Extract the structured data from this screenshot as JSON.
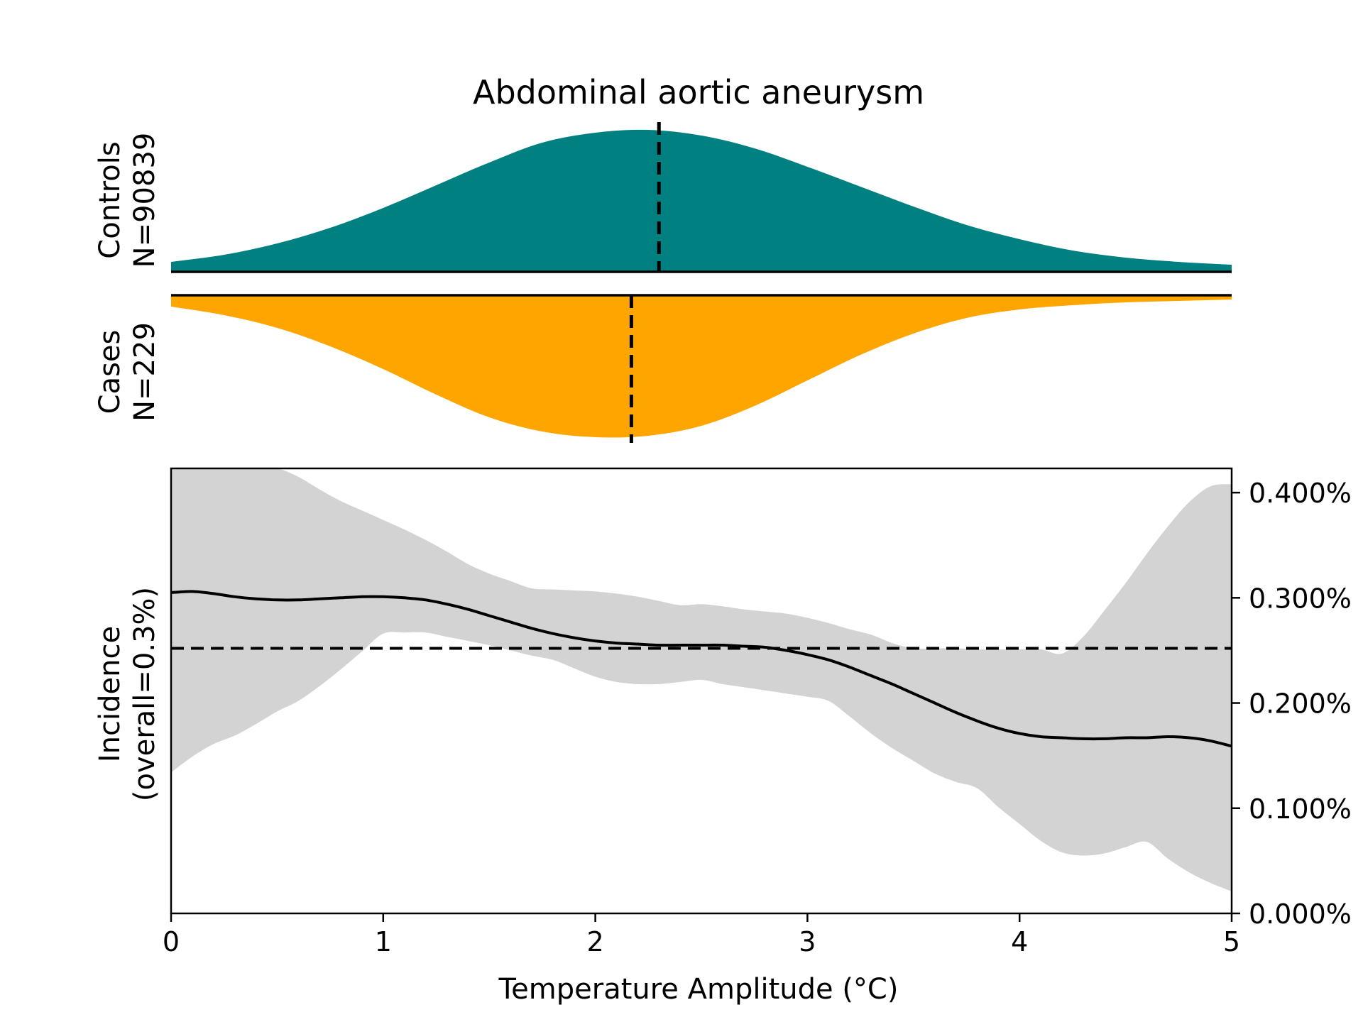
{
  "chart_data": {
    "type": "area",
    "title": "Abdominal aortic aneurysm",
    "xlabel": "Temperature Amplitude (°C)",
    "xlim": [
      0,
      5
    ],
    "x_ticks": [
      "0",
      "1",
      "2",
      "3",
      "4",
      "5"
    ],
    "x_tick_values": [
      0,
      1,
      2,
      3,
      4,
      5
    ],
    "colors": {
      "controls": "#008080",
      "cases": "#FFA500",
      "band": "#D3D3D3",
      "line": "#000000"
    },
    "density_panels": [
      {
        "key": "controls",
        "label_line1": "Controls",
        "label_line2": "N=90839",
        "direction": "up",
        "median": 2.3,
        "x": [
          0,
          0.25,
          0.5,
          0.75,
          1,
          1.25,
          1.5,
          1.75,
          2,
          2.25,
          2.5,
          2.75,
          3,
          3.25,
          3.5,
          3.75,
          4,
          4.25,
          4.5,
          4.75,
          5
        ],
        "density": [
          0.07,
          0.12,
          0.2,
          0.31,
          0.45,
          0.61,
          0.77,
          0.91,
          0.98,
          1.0,
          0.96,
          0.87,
          0.74,
          0.6,
          0.46,
          0.33,
          0.23,
          0.15,
          0.1,
          0.07,
          0.05
        ]
      },
      {
        "key": "cases",
        "label_line1": "Cases",
        "label_line2": "N=229",
        "direction": "down",
        "median": 2.17,
        "x": [
          0,
          0.25,
          0.5,
          0.75,
          1,
          1.25,
          1.5,
          1.75,
          2,
          2.25,
          2.5,
          2.75,
          3,
          3.25,
          3.5,
          3.75,
          4,
          4.25,
          4.5,
          4.75,
          5
        ],
        "density": [
          0.08,
          0.14,
          0.23,
          0.36,
          0.52,
          0.7,
          0.86,
          0.96,
          1.0,
          0.99,
          0.92,
          0.78,
          0.6,
          0.42,
          0.27,
          0.16,
          0.1,
          0.07,
          0.05,
          0.04,
          0.03
        ]
      }
    ],
    "incidence": {
      "ylabel_line1": "Incidence",
      "ylabel_line2": "(overall=0.3%)",
      "y_axis_side": "right",
      "ylim": [
        0,
        0.00423
      ],
      "y_ticks": [
        "0.000%",
        "0.100%",
        "0.200%",
        "0.300%",
        "0.400%"
      ],
      "y_tick_values": [
        0,
        0.001,
        0.002,
        0.003,
        0.004
      ],
      "reference_line": 0.00252,
      "x": [
        0,
        0.1,
        0.2,
        0.3,
        0.4,
        0.5,
        0.6,
        0.7,
        0.8,
        0.9,
        1.0,
        1.1,
        1.2,
        1.3,
        1.4,
        1.5,
        1.6,
        1.7,
        1.8,
        1.9,
        2.0,
        2.1,
        2.2,
        2.3,
        2.4,
        2.5,
        2.6,
        2.7,
        2.8,
        2.9,
        3.0,
        3.1,
        3.2,
        3.3,
        3.4,
        3.5,
        3.6,
        3.7,
        3.8,
        3.9,
        4.0,
        4.1,
        4.2,
        4.3,
        4.4,
        4.5,
        4.6,
        4.7,
        4.8,
        4.9,
        5.0
      ],
      "mean": [
        0.00305,
        0.00306,
        0.00304,
        0.00301,
        0.00299,
        0.00298,
        0.00298,
        0.00299,
        0.003,
        0.00301,
        0.00301,
        0.003,
        0.00298,
        0.00294,
        0.00289,
        0.00283,
        0.00277,
        0.00271,
        0.00266,
        0.00262,
        0.00259,
        0.00257,
        0.00256,
        0.00255,
        0.00255,
        0.00255,
        0.00255,
        0.00254,
        0.00253,
        0.0025,
        0.00246,
        0.00241,
        0.00234,
        0.00226,
        0.00218,
        0.00209,
        0.002,
        0.00191,
        0.00183,
        0.00176,
        0.00171,
        0.00168,
        0.00167,
        0.00166,
        0.00166,
        0.00167,
        0.00167,
        0.00168,
        0.00167,
        0.00164,
        0.00159
      ],
      "lower": [
        0.00134,
        0.00149,
        0.00161,
        0.00169,
        0.0018,
        0.00192,
        0.00202,
        0.00216,
        0.00232,
        0.00249,
        0.00266,
        0.00267,
        0.00267,
        0.00263,
        0.00259,
        0.00255,
        0.0025,
        0.00245,
        0.00241,
        0.00233,
        0.00225,
        0.0022,
        0.00218,
        0.00218,
        0.0022,
        0.00222,
        0.00218,
        0.00215,
        0.00212,
        0.00209,
        0.00206,
        0.00202,
        0.00187,
        0.00171,
        0.00157,
        0.00145,
        0.00133,
        0.00125,
        0.00119,
        0.00101,
        0.00085,
        0.00069,
        0.00058,
        0.00055,
        0.00057,
        0.00063,
        0.00068,
        0.00052,
        0.00039,
        0.00029,
        0.00021
      ],
      "upper": [
        0.00423,
        0.00423,
        0.00423,
        0.00423,
        0.00423,
        0.00423,
        0.00415,
        0.00403,
        0.00392,
        0.00383,
        0.00374,
        0.00365,
        0.00355,
        0.00344,
        0.00332,
        0.00323,
        0.00316,
        0.00309,
        0.00308,
        0.00307,
        0.00306,
        0.00304,
        0.00301,
        0.00297,
        0.00293,
        0.00294,
        0.00292,
        0.00289,
        0.00287,
        0.00285,
        0.00281,
        0.00276,
        0.0027,
        0.00265,
        0.00257,
        0.00252,
        0.00252,
        0.00252,
        0.00251,
        0.00251,
        0.00251,
        0.00251,
        0.00247,
        0.00263,
        0.00288,
        0.00314,
        0.00342,
        0.00368,
        0.00391,
        0.00406,
        0.00408
      ]
    }
  }
}
